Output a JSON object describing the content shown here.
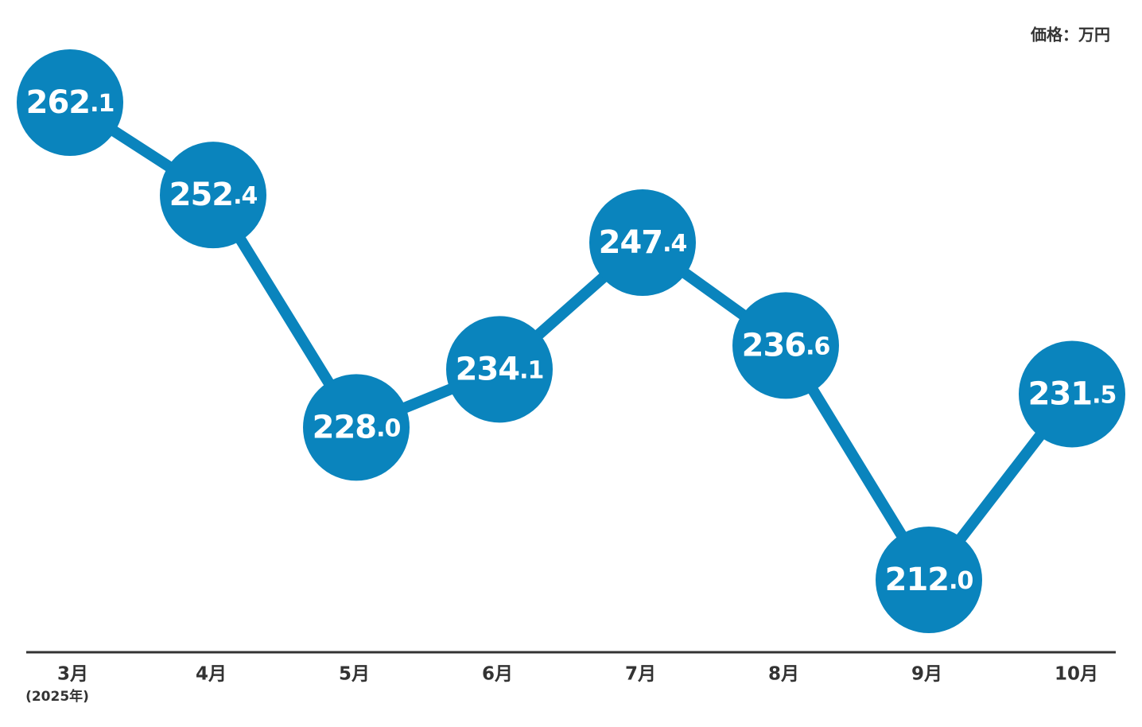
{
  "chart_data": {
    "type": "line",
    "unit_label": "価格：万円",
    "categories": [
      "3月",
      "4月",
      "5月",
      "6月",
      "7月",
      "8月",
      "9月",
      "10月"
    ],
    "category_note": "(2025年)",
    "values": [
      262.1,
      252.4,
      228.0,
      234.1,
      247.4,
      236.6,
      212.0,
      231.5
    ],
    "value_labels": [
      "262.1",
      "252.4",
      "228.0",
      "234.1",
      "247.4",
      "236.6",
      "212.0",
      "231.5"
    ],
    "color": "#0a84bd"
  }
}
